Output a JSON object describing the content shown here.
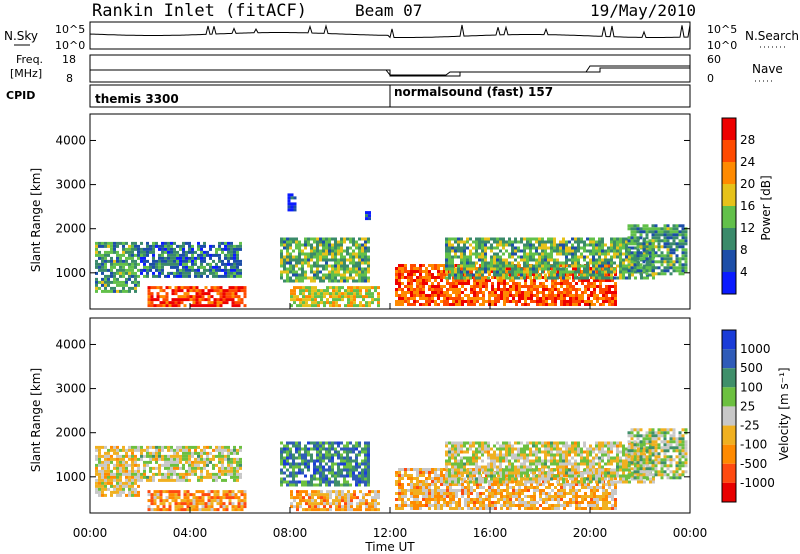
{
  "header": {
    "station": "Rankin Inlet (fitACF)",
    "beam": "Beam 07",
    "date": "19/May/2010"
  },
  "nsky_panel": {
    "label": "N.Sky",
    "tick_top": "10^5",
    "tick_bottom": "10^0",
    "right_label": "N.Search",
    "right_tick_top": "10^5",
    "right_tick_bottom": "10^0"
  },
  "freq_panel": {
    "label_line1": "Freq.",
    "label_line2": "[MHz]",
    "tick_top": "18",
    "tick_bottom": "8",
    "right_label": "Nave",
    "right_tick_top": "60",
    "right_tick_bottom": "0"
  },
  "cpid_panel": {
    "label": "CPID",
    "segments": [
      {
        "name": "themis 3300",
        "start_hour": 0,
        "end_hour": 12
      },
      {
        "name": "normalsound (fast) 157",
        "start_hour": 12,
        "end_hour": 24
      }
    ]
  },
  "power_panel": {
    "ylabel": "Slant Range [km]",
    "yticks": [
      "1000",
      "2000",
      "3000",
      "4000"
    ],
    "colorbar_label": "Power [dB]",
    "colorbar_ticks": [
      "4",
      "8",
      "12",
      "16",
      "20",
      "24",
      "28"
    ],
    "colors": [
      "#0a1bff",
      "#1c4ea8",
      "#3a8a6a",
      "#62c04a",
      "#e6c21a",
      "#ff8a00",
      "#ff4a00",
      "#ee0000"
    ]
  },
  "velocity_panel": {
    "ylabel": "Slant Range [km]",
    "yticks": [
      "1000",
      "2000",
      "3000",
      "4000"
    ],
    "colorbar_label": "Velocity [m s⁻¹]",
    "colorbar_ticks": [
      "1000",
      "500",
      "100",
      "25",
      "-25",
      "-100",
      "-500",
      "-1000"
    ],
    "colors": [
      "#1a3cd8",
      "#2f5bb8",
      "#3f8f6a",
      "#6cc040",
      "#c8c8c8",
      "#f0b020",
      "#ff8a00",
      "#ff4a10",
      "#e80000"
    ]
  },
  "xaxis": {
    "label": "Time UT",
    "ticks": [
      "00:00",
      "04:00",
      "08:00",
      "12:00",
      "16:00",
      "20:00",
      "00:00"
    ]
  },
  "chart_data": [
    {
      "type": "heatmap",
      "title": "Power",
      "x_range_hours": [
        0,
        24
      ],
      "y_range_km": [
        180,
        4600
      ],
      "colorbar_range_db": [
        0,
        32
      ],
      "echo_regions": [
        {
          "t0": 0.2,
          "t1": 2.0,
          "r0": 600,
          "r1": 1700,
          "level": 0.35
        },
        {
          "t0": 2.0,
          "t1": 6.0,
          "r0": 900,
          "r1": 1700,
          "level": 0.25
        },
        {
          "t0": 2.3,
          "t1": 6.2,
          "r0": 250,
          "r1": 700,
          "level": 0.85
        },
        {
          "t0": 7.6,
          "t1": 11.2,
          "r0": 800,
          "r1": 1800,
          "level": 0.4
        },
        {
          "t0": 8.0,
          "t1": 11.5,
          "r0": 250,
          "r1": 700,
          "level": 0.55
        },
        {
          "t0": 12.2,
          "t1": 21.0,
          "r0": 250,
          "r1": 1200,
          "level": 0.8
        },
        {
          "t0": 14.2,
          "t1": 22.5,
          "r0": 900,
          "r1": 1800,
          "level": 0.4
        },
        {
          "t0": 21.5,
          "t1": 23.8,
          "r0": 1000,
          "r1": 2100,
          "level": 0.35
        },
        {
          "t0": 7.9,
          "t1": 8.2,
          "r0": 2400,
          "r1": 2800,
          "level": 0.1
        },
        {
          "t0": 11.0,
          "t1": 11.2,
          "r0": 2200,
          "r1": 2400,
          "level": 0.1
        }
      ]
    },
    {
      "type": "heatmap",
      "title": "Velocity",
      "x_range_hours": [
        0,
        24
      ],
      "y_range_km": [
        180,
        4600
      ],
      "colorbar_range_ms": [
        -1000,
        1000
      ],
      "echo_regions": [
        {
          "t0": 0.2,
          "t1": 2.0,
          "r0": 600,
          "r1": 1700,
          "level": 0.55
        },
        {
          "t0": 2.0,
          "t1": 6.0,
          "r0": 900,
          "r1": 1700,
          "level": 0.5
        },
        {
          "t0": 2.3,
          "t1": 6.2,
          "r0": 250,
          "r1": 700,
          "level": 0.7
        },
        {
          "t0": 7.6,
          "t1": 11.2,
          "r0": 800,
          "r1": 1800,
          "level": 0.25
        },
        {
          "t0": 8.0,
          "t1": 11.5,
          "r0": 250,
          "r1": 700,
          "level": 0.65
        },
        {
          "t0": 12.2,
          "t1": 21.0,
          "r0": 250,
          "r1": 1200,
          "level": 0.62
        },
        {
          "t0": 14.2,
          "t1": 22.5,
          "r0": 900,
          "r1": 1800,
          "level": 0.5
        },
        {
          "t0": 21.5,
          "t1": 23.8,
          "r0": 1000,
          "r1": 2100,
          "level": 0.45
        }
      ]
    }
  ]
}
